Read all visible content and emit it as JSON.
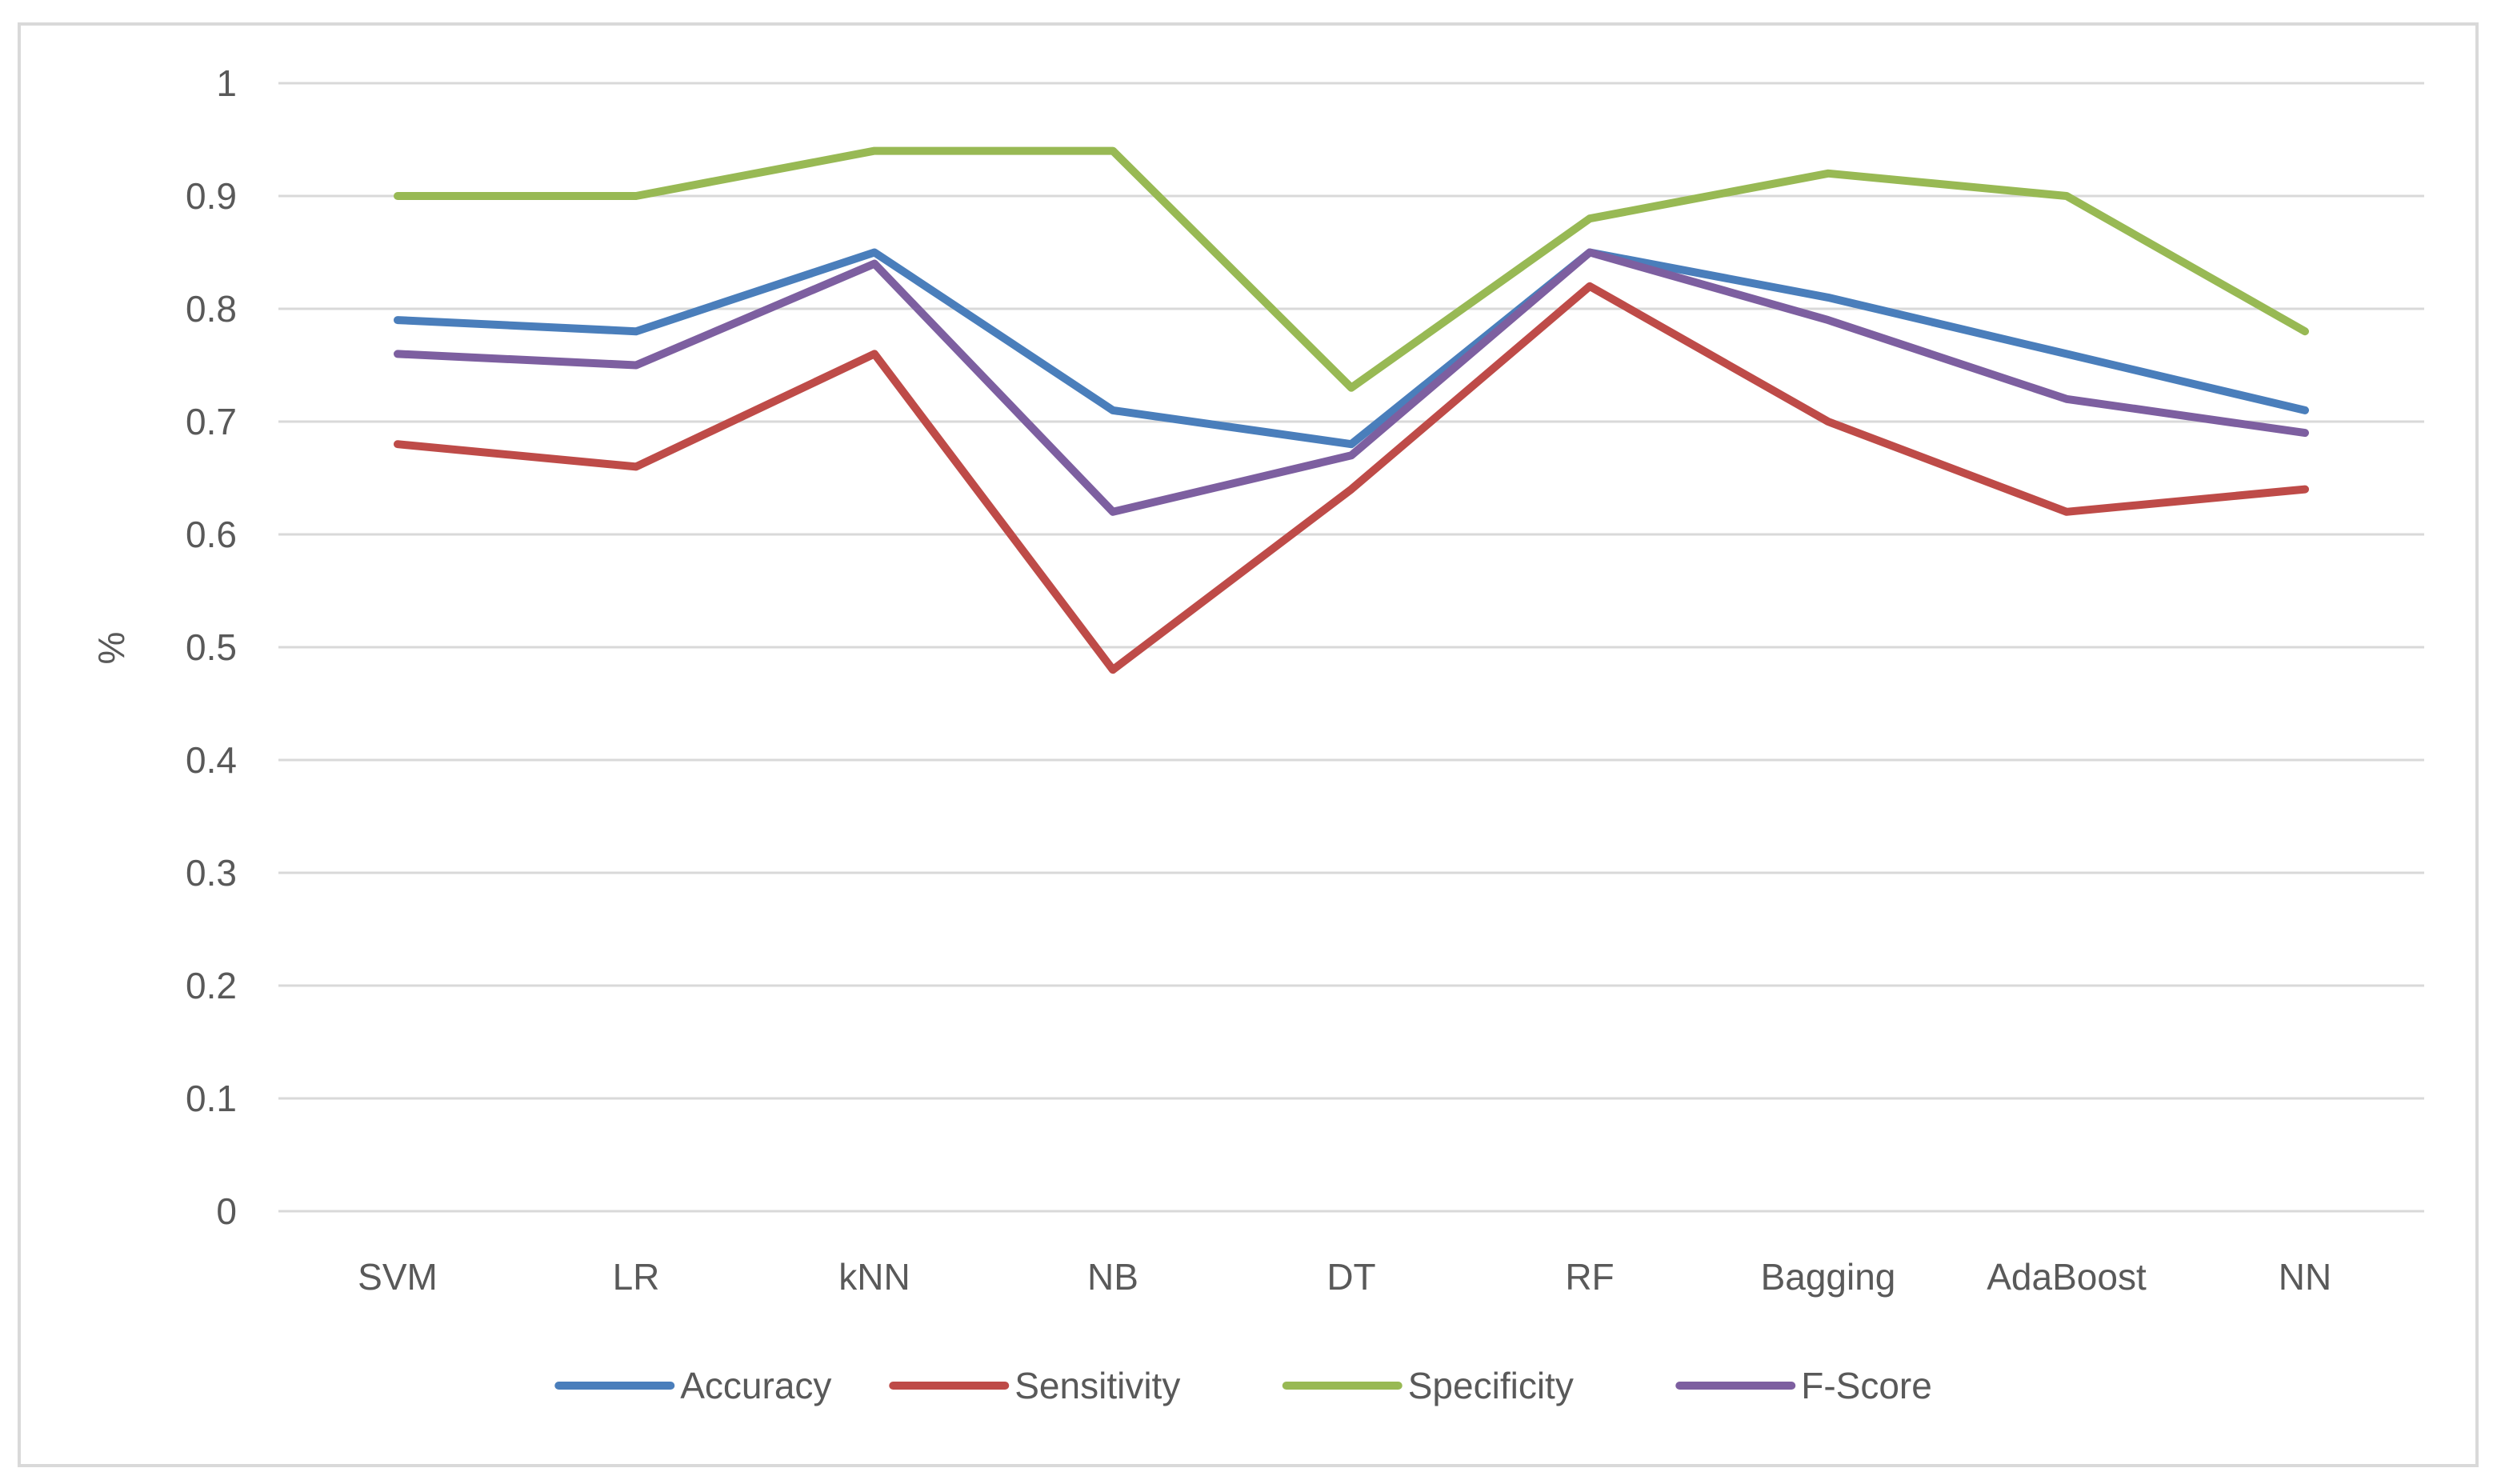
{
  "chart_data": {
    "type": "line",
    "title": "",
    "xlabel": "",
    "ylabel": "%",
    "ylim": [
      0,
      1
    ],
    "yticks": [
      "0",
      "0.1",
      "0.2",
      "0.3",
      "0.4",
      "0.5",
      "0.6",
      "0.7",
      "0.8",
      "0.9",
      "1"
    ],
    "categories": [
      "SVM",
      "LR",
      "kNN",
      "NB",
      "DT",
      "RF",
      "Bagging",
      "AdaBoost",
      "NN"
    ],
    "grid": true,
    "legend_position": "bottom",
    "series": [
      {
        "name": "Accuracy",
        "color": "#4a7ebb",
        "values": [
          0.79,
          0.78,
          0.85,
          0.71,
          0.68,
          0.85,
          0.81,
          0.76,
          0.71
        ]
      },
      {
        "name": "Sensitivity",
        "color": "#be4b48",
        "values": [
          0.68,
          0.66,
          0.76,
          0.48,
          0.64,
          0.82,
          0.7,
          0.62,
          0.64
        ]
      },
      {
        "name": "Specificity",
        "color": "#98b954",
        "values": [
          0.9,
          0.9,
          0.94,
          0.94,
          0.73,
          0.88,
          0.92,
          0.9,
          0.78
        ]
      },
      {
        "name": "F-Score",
        "color": "#7d5fa0",
        "values": [
          0.76,
          0.75,
          0.84,
          0.62,
          0.67,
          0.85,
          0.79,
          0.72,
          0.69
        ]
      }
    ]
  }
}
